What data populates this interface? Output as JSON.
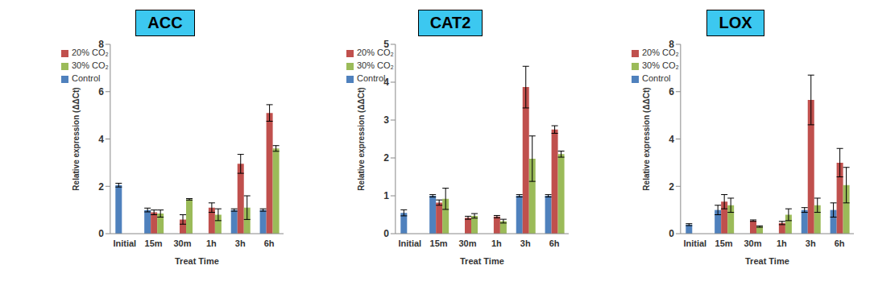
{
  "chart_data": [
    {
      "type": "bar",
      "title": "ACC",
      "x_label": "Treat Time",
      "y_label": "Relative expression (ΔΔCt)",
      "categories": [
        "Initial",
        "15m",
        "30m",
        "1h",
        "3h",
        "6h"
      ],
      "ylim": [
        0,
        8
      ],
      "yticks": [
        0,
        2,
        4,
        6,
        8
      ],
      "grid": false,
      "legend": "upper left",
      "series": [
        {
          "name": "Control",
          "color": "#4F81BD",
          "values": [
            2.05,
            1.0,
            null,
            null,
            1.0,
            1.0
          ],
          "errors": [
            0.08,
            0.08,
            null,
            null,
            0.05,
            0.05
          ]
        },
        {
          "name": "20% CO₂",
          "color": "#C0504D",
          "values": [
            null,
            0.9,
            0.6,
            1.1,
            2.95,
            5.1
          ],
          "errors": [
            null,
            0.1,
            0.2,
            0.2,
            0.4,
            0.35
          ]
        },
        {
          "name": "30% CO₂",
          "color": "#9BBB59",
          "values": [
            null,
            0.85,
            1.45,
            0.8,
            1.1,
            3.6
          ],
          "errors": [
            null,
            0.15,
            0.03,
            0.25,
            0.5,
            0.12
          ]
        }
      ]
    },
    {
      "type": "bar",
      "title": "CAT2",
      "x_label": "Treat Time",
      "y_label": "Relative expression (ΔΔCt)",
      "categories": [
        "Initial",
        "15m",
        "30m",
        "1h",
        "3h",
        "6h"
      ],
      "ylim": [
        0,
        5
      ],
      "yticks": [
        0,
        1,
        2,
        3,
        4,
        5
      ],
      "grid": false,
      "legend": "upper left",
      "series": [
        {
          "name": "Control",
          "color": "#4F81BD",
          "values": [
            0.55,
            1.0,
            null,
            null,
            1.0,
            1.0
          ],
          "errors": [
            0.08,
            0.03,
            null,
            null,
            0.03,
            0.03
          ]
        },
        {
          "name": "20% CO₂",
          "color": "#C0504D",
          "values": [
            null,
            0.82,
            0.42,
            0.45,
            3.87,
            2.75
          ],
          "errors": [
            null,
            0.07,
            0.04,
            0.03,
            0.55,
            0.1
          ]
        },
        {
          "name": "30% CO₂",
          "color": "#9BBB59",
          "values": [
            null,
            0.92,
            0.47,
            0.33,
            1.98,
            2.1
          ],
          "errors": [
            null,
            0.28,
            0.06,
            0.05,
            0.6,
            0.08
          ]
        }
      ]
    },
    {
      "type": "bar",
      "title": "LOX",
      "x_label": "Treat Time",
      "y_label": "Relative expression (ΔΔCt)",
      "categories": [
        "Initial",
        "15m",
        "30m",
        "1h",
        "3h",
        "6h"
      ],
      "ylim": [
        0,
        8
      ],
      "yticks": [
        0,
        2,
        4,
        6,
        8
      ],
      "grid": false,
      "legend": "upper left",
      "series": [
        {
          "name": "Control",
          "color": "#4F81BD",
          "values": [
            0.38,
            1.0,
            null,
            null,
            1.0,
            1.0
          ],
          "errors": [
            0.04,
            0.2,
            null,
            null,
            0.1,
            0.3
          ]
        },
        {
          "name": "20% CO₂",
          "color": "#C0504D",
          "values": [
            null,
            1.35,
            0.55,
            0.45,
            5.65,
            3.0
          ],
          "errors": [
            null,
            0.3,
            0.03,
            0.07,
            1.05,
            0.6
          ]
        },
        {
          "name": "30% CO₂",
          "color": "#9BBB59",
          "values": [
            null,
            1.2,
            0.3,
            0.8,
            1.2,
            2.05
          ],
          "errors": [
            null,
            0.3,
            0.03,
            0.25,
            0.3,
            0.75
          ]
        }
      ]
    }
  ]
}
